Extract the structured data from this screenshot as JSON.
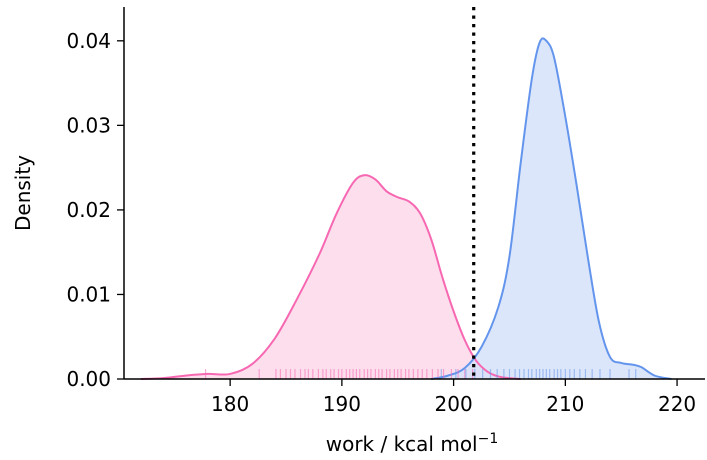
{
  "chart_data": {
    "type": "area",
    "title": "",
    "xlabel": "work / kcal mol",
    "xlabel_superscript": "−1",
    "ylabel": "Density",
    "xlim": [
      170.5,
      222.5
    ],
    "ylim": [
      0,
      0.044
    ],
    "xticks": [
      180,
      190,
      200,
      210,
      220
    ],
    "xtick_labels": [
      "180",
      "190",
      "200",
      "210",
      "220"
    ],
    "yticks": [
      0,
      0.01,
      0.02,
      0.03,
      0.04
    ],
    "ytick_labels": [
      "0.00",
      "0.01",
      "0.02",
      "0.03",
      "0.04"
    ],
    "grid": false,
    "vline": {
      "x": 201.8,
      "style": "dotted",
      "color": "#000000"
    },
    "series": [
      {
        "line_color": "#f768b2",
        "fill_color": "#fdd8ea",
        "x": [
          172.0,
          174.0,
          176.0,
          178.0,
          180.0,
          182.0,
          184.0,
          186.0,
          188.0,
          189.5,
          191.0,
          192.0,
          193.0,
          194.0,
          195.0,
          196.0,
          197.0,
          198.0,
          199.0,
          200.0,
          201.0,
          202.0,
          203.0,
          204.0,
          205.0,
          206.0
        ],
        "y": [
          0.0,
          0.0001,
          0.0004,
          0.0006,
          0.0006,
          0.0018,
          0.0048,
          0.0095,
          0.0148,
          0.0195,
          0.0232,
          0.0241,
          0.0236,
          0.0222,
          0.0215,
          0.021,
          0.0196,
          0.0165,
          0.012,
          0.008,
          0.0046,
          0.0022,
          0.0009,
          0.0003,
          0.0001,
          0.0
        ]
      },
      {
        "line_color": "#6495ed",
        "fill_color": "#d6e2f9",
        "x": [
          198.0,
          199.5,
          201.0,
          202.5,
          204.0,
          205.0,
          206.0,
          207.0,
          207.7,
          208.3,
          209.0,
          210.0,
          211.0,
          212.0,
          213.0,
          214.0,
          215.0,
          216.0,
          216.8,
          218.0,
          219.5
        ],
        "y": [
          0.0,
          0.0004,
          0.0013,
          0.0038,
          0.0085,
          0.0145,
          0.0255,
          0.0355,
          0.0398,
          0.04,
          0.038,
          0.031,
          0.023,
          0.0145,
          0.0068,
          0.0026,
          0.0019,
          0.0017,
          0.0014,
          0.0004,
          0.0
        ]
      }
    ],
    "rugs": [
      {
        "color": "#f768b2",
        "x": [
          177.8,
          182.6,
          184.1,
          184.5,
          185.0,
          185.4,
          185.8,
          186.3,
          186.7,
          187.0,
          187.4,
          187.9,
          188.3,
          188.6,
          189.0,
          189.3,
          189.7,
          190.0,
          190.4,
          190.7,
          191.0,
          191.3,
          191.6,
          192.0,
          192.3,
          192.6,
          193.0,
          193.3,
          193.6,
          194.0,
          194.3,
          194.7,
          195.0,
          195.3,
          195.7,
          196.0,
          196.4,
          196.8,
          197.2,
          197.6,
          198.1,
          198.6,
          199.1,
          199.8,
          200.4,
          201.0,
          201.7
        ]
      },
      {
        "color": "#6495ed",
        "x": [
          198.9,
          200.2,
          201.1,
          201.9,
          202.6,
          203.3,
          203.9,
          204.5,
          205.0,
          205.5,
          205.9,
          206.3,
          206.7,
          207.0,
          207.4,
          207.7,
          208.0,
          208.3,
          208.6,
          209.0,
          209.3,
          209.6,
          210.0,
          210.4,
          210.8,
          211.3,
          211.8,
          212.4,
          213.1,
          214.0,
          215.7,
          216.3
        ]
      }
    ]
  }
}
